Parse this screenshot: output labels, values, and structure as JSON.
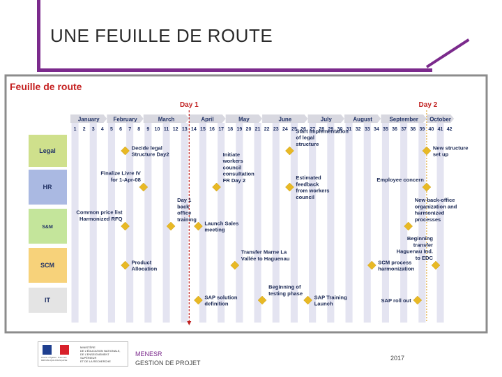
{
  "page_title": "UNE FEUILLE DE ROUTE",
  "diagram": {
    "heading": "Feuille de route",
    "day_markers": [
      {
        "label": "Day 1",
        "week": 13.5
      },
      {
        "label": "Day 2",
        "week": 39.5
      }
    ],
    "months": [
      {
        "label": "January",
        "start": 1,
        "end": 4
      },
      {
        "label": "February",
        "start": 5,
        "end": 8
      },
      {
        "label": "March",
        "start": 9,
        "end": 13
      },
      {
        "label": "April",
        "start": 14,
        "end": 17
      },
      {
        "label": "May",
        "start": 18,
        "end": 21
      },
      {
        "label": "June",
        "start": 22,
        "end": 26
      },
      {
        "label": "July",
        "start": 27,
        "end": 30
      },
      {
        "label": "August",
        "start": 31,
        "end": 34
      },
      {
        "label": "September",
        "start": 35,
        "end": 39
      },
      {
        "label": "October",
        "start": 40,
        "end": 42
      }
    ],
    "weeks": [
      "1",
      "2",
      "3",
      "4",
      "5",
      "6",
      "7",
      "8",
      "9",
      "10",
      "11",
      "12",
      "13",
      "14",
      "15",
      "16",
      "17",
      "18",
      "19",
      "20",
      "21",
      "22",
      "23",
      "24",
      "25",
      "26",
      "27",
      "28",
      "29",
      "30",
      "31",
      "32",
      "33",
      "34",
      "35",
      "36",
      "37",
      "38",
      "39",
      "40",
      "41",
      "42"
    ],
    "lanes": [
      {
        "label": "Legal",
        "color": "#cfe08c"
      },
      {
        "label": "HR",
        "color": "#aab9e2"
      },
      {
        "label": "S&M",
        "color": "#c4e59b"
      },
      {
        "label": "SCM",
        "color": "#f7d27a"
      },
      {
        "label": "IT",
        "color": "#e4e4e4"
      }
    ],
    "milestones": [
      {
        "lane": 0,
        "week": 6.5,
        "text": [
          "Decide legal",
          "Structure Day2"
        ],
        "side": "right"
      },
      {
        "lane": 0,
        "week": 24.5,
        "text": [
          "Start Implementation",
          "of legal",
          "structure"
        ],
        "side": "right-up"
      },
      {
        "lane": 0,
        "week": 39.5,
        "text": [
          "New structure",
          "set up"
        ],
        "side": "right"
      },
      {
        "lane": 1,
        "week": 8.5,
        "text": [
          "Finalize Livre IV",
          "for 1-Apr-08"
        ],
        "side": "left-up"
      },
      {
        "lane": 1,
        "week": 16.5,
        "text": [
          "Initiate",
          "workers",
          "council",
          "consultation",
          "FR Day 2"
        ],
        "side": "right-up"
      },
      {
        "lane": 1,
        "week": 24.5,
        "text": [
          "Estimated",
          "feedback",
          "from workers",
          "council"
        ],
        "side": "right"
      },
      {
        "lane": 1,
        "week": 39.5,
        "text": [
          "Employee concern"
        ],
        "side": "left-up"
      },
      {
        "lane": 2,
        "week": 6.5,
        "text": [
          "Common price list",
          "Harmonized RFQ"
        ],
        "side": "left-up"
      },
      {
        "lane": 2,
        "week": 11.5,
        "text": [
          "Day 1",
          "back",
          "office",
          "training"
        ],
        "side": "right-up"
      },
      {
        "lane": 2,
        "week": 14.5,
        "text": [
          "Launch Sales",
          "meeting"
        ],
        "side": "right"
      },
      {
        "lane": 2,
        "week": 37.5,
        "text": [
          "New back-office",
          "organization and",
          "harmonized",
          "processes"
        ],
        "side": "right-up"
      },
      {
        "lane": 3,
        "week": 6.5,
        "text": [
          "Product",
          "Allocation"
        ],
        "side": "right"
      },
      {
        "lane": 3,
        "week": 18.5,
        "text": [
          "Transfer Marne La",
          "Vallée to Haguenau"
        ],
        "side": "right-up"
      },
      {
        "lane": 3,
        "week": 33.5,
        "text": [
          "SCM process",
          "harmonization"
        ],
        "side": "right"
      },
      {
        "lane": 3,
        "week": 40.5,
        "text": [
          "Beginning",
          "transfer",
          "Haguenau Ind.",
          "to EDC"
        ],
        "side": "left-up"
      },
      {
        "lane": 4,
        "week": 14.5,
        "text": [
          "SAP solution",
          "definition"
        ],
        "side": "right"
      },
      {
        "lane": 4,
        "week": 21.5,
        "text": [
          "Beginning of",
          "testing phase"
        ],
        "side": "right-up"
      },
      {
        "lane": 4,
        "week": 26.5,
        "text": [
          "SAP Training",
          "Launch"
        ],
        "side": "right"
      },
      {
        "lane": 4,
        "week": 38.5,
        "text": [
          "SAP roll out"
        ],
        "side": "left"
      }
    ]
  },
  "footer": {
    "logo_lines": [
      "MINISTÈRE",
      "DE L'ÉDUCATION NATIONALE,",
      "DE L'ENSEIGNEMENT SUPÉRIEUR",
      "ET DE LA RECHERCHE"
    ],
    "org": "MENESR",
    "dept": "GESTION DE PROJET",
    "year": "2017"
  },
  "colors": {
    "accent_purple": "#7b2a8c",
    "heading_red": "#c41f1f",
    "diamond": "#e8b925",
    "week_bar": "#e4e4f1",
    "month_bar": "#d8d8e0",
    "day_line": "#c02020",
    "marker_orange": "#d99a1a"
  }
}
